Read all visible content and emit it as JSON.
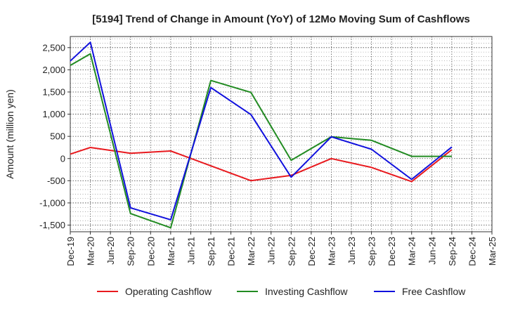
{
  "chart_data": {
    "type": "line",
    "title": "[5194]  Trend of Change in Amount (YoY) of 12Mo Moving Sum of Cashflows",
    "xlabel": "",
    "ylabel": "Amount (million yen)",
    "ylim": [
      -1650,
      2750
    ],
    "yticks": [
      2500,
      2000,
      1500,
      1000,
      500,
      0,
      -500,
      -1000,
      -1500
    ],
    "ytick_labels": [
      "2,500",
      "2,000",
      "1,500",
      "1,000",
      "500",
      "0",
      "-500",
      "-1,000",
      "-1,500"
    ],
    "categories": [
      "Dec-19",
      "Mar-20",
      "Jun-20",
      "Sep-20",
      "Dec-20",
      "Mar-21",
      "Jun-21",
      "Sep-21",
      "Dec-21",
      "Mar-22",
      "Jun-22",
      "Sep-22",
      "Dec-22",
      "Mar-23",
      "Jun-23",
      "Sep-23",
      "Dec-23",
      "Mar-24",
      "Jun-24",
      "Sep-24",
      "Dec-24",
      "Mar-25"
    ],
    "grid": true,
    "legend_position": "bottom",
    "series": [
      {
        "name": "Operating Cashflow",
        "color": "#e8191e",
        "values": [
          100,
          250,
          null,
          120,
          null,
          170,
          null,
          null,
          null,
          -500,
          null,
          -380,
          null,
          0,
          null,
          -200,
          null,
          -520,
          null,
          200,
          null,
          null
        ]
      },
      {
        "name": "Investing Cashflow",
        "color": "#228b22",
        "values": [
          2100,
          2360,
          null,
          -1240,
          null,
          -1560,
          null,
          1760,
          null,
          1490,
          null,
          -40,
          null,
          490,
          null,
          410,
          null,
          50,
          null,
          50,
          null,
          null
        ]
      },
      {
        "name": "Free Cashflow",
        "color": "#1010dd",
        "values": [
          2200,
          2620,
          null,
          -1110,
          null,
          -1380,
          null,
          1600,
          null,
          990,
          null,
          -420,
          null,
          490,
          null,
          210,
          null,
          -470,
          null,
          260,
          null,
          null
        ]
      }
    ]
  }
}
